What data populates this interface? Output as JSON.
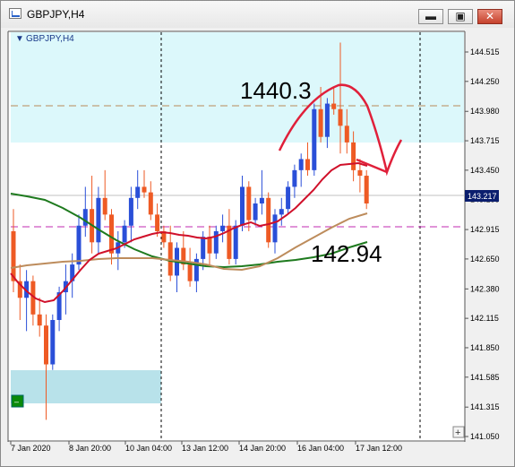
{
  "window": {
    "title": "GBPJPY,H4"
  },
  "chart": {
    "symbol_label": "GBPJPY,H4"
  },
  "chart_data": {
    "type": "candlestick",
    "symbol": "GBPJPY,H4",
    "y_ticks": [
      "144.515",
      "144.250",
      "143.980",
      "143.715",
      "143.450",
      "143.185",
      "142.915",
      "142.650",
      "142.380",
      "142.115",
      "141.850",
      "141.585",
      "141.315",
      "141.050"
    ],
    "x_ticks": [
      "7 Jan 2020",
      "8 Jan 20:00",
      "10 Jan 04:00",
      "13 Jan 12:00",
      "14 Jan 20:00",
      "16 Jan 04:00",
      "17 Jan 12:00"
    ],
    "current_price": "143.217",
    "ylim": [
      141.05,
      144.6
    ],
    "annotations": [
      "1440.3",
      "142.94"
    ],
    "ohlc": [
      [
        142.9,
        143.1,
        142.35,
        142.45
      ],
      [
        142.45,
        142.6,
        142.1,
        142.3
      ],
      [
        142.3,
        142.55,
        142.0,
        142.45
      ],
      [
        142.45,
        142.5,
        142.05,
        142.15
      ],
      [
        142.15,
        142.3,
        141.95,
        142.05
      ],
      [
        142.05,
        142.15,
        141.2,
        141.7
      ],
      [
        141.7,
        142.15,
        141.65,
        142.1
      ],
      [
        142.1,
        142.4,
        142.0,
        142.35
      ],
      [
        142.35,
        142.6,
        142.15,
        142.45
      ],
      [
        142.45,
        142.7,
        142.3,
        142.6
      ],
      [
        142.6,
        143.05,
        142.55,
        142.95
      ],
      [
        142.95,
        143.3,
        142.85,
        143.1
      ],
      [
        143.1,
        143.4,
        142.7,
        142.8
      ],
      [
        142.8,
        143.3,
        142.7,
        143.2
      ],
      [
        143.2,
        143.45,
        143.0,
        143.05
      ],
      [
        143.05,
        143.1,
        142.6,
        142.7
      ],
      [
        142.7,
        142.9,
        142.55,
        142.8
      ],
      [
        142.8,
        143.0,
        142.75,
        142.95
      ],
      [
        142.95,
        143.3,
        142.8,
        143.2
      ],
      [
        143.2,
        143.45,
        143.1,
        143.3
      ],
      [
        143.3,
        143.45,
        143.2,
        143.25
      ],
      [
        143.25,
        143.35,
        143.0,
        143.05
      ],
      [
        143.05,
        143.15,
        142.85,
        142.9
      ],
      [
        142.9,
        142.95,
        142.75,
        142.8
      ],
      [
        142.8,
        142.95,
        142.45,
        142.5
      ],
      [
        142.5,
        142.8,
        142.35,
        142.75
      ],
      [
        142.75,
        142.9,
        142.55,
        142.6
      ],
      [
        142.6,
        142.75,
        142.4,
        142.45
      ],
      [
        142.45,
        142.7,
        142.35,
        142.65
      ],
      [
        142.65,
        142.9,
        142.55,
        142.85
      ],
      [
        142.85,
        142.95,
        142.6,
        142.7
      ],
      [
        142.7,
        142.95,
        142.65,
        142.9
      ],
      [
        142.9,
        143.05,
        142.8,
        142.95
      ],
      [
        142.95,
        143.1,
        142.6,
        142.65
      ],
      [
        142.65,
        143.0,
        142.6,
        142.95
      ],
      [
        142.95,
        143.4,
        142.9,
        143.3
      ],
      [
        143.3,
        143.35,
        142.9,
        143.0
      ],
      [
        143.0,
        143.2,
        142.95,
        143.15
      ],
      [
        143.15,
        143.45,
        143.05,
        143.2
      ],
      [
        143.2,
        143.25,
        142.75,
        142.8
      ],
      [
        142.8,
        143.1,
        142.7,
        143.05
      ],
      [
        143.05,
        143.2,
        142.95,
        143.1
      ],
      [
        143.1,
        143.35,
        143.05,
        143.3
      ],
      [
        143.3,
        143.5,
        143.2,
        143.45
      ],
      [
        143.45,
        143.6,
        143.3,
        143.55
      ],
      [
        143.55,
        143.7,
        143.4,
        143.45
      ],
      [
        143.45,
        144.05,
        143.4,
        144.0
      ],
      [
        144.0,
        144.2,
        143.7,
        143.75
      ],
      [
        143.75,
        144.1,
        143.65,
        144.05
      ],
      [
        144.05,
        144.2,
        143.95,
        144.0
      ],
      [
        144.0,
        144.6,
        143.6,
        143.85
      ],
      [
        143.85,
        144.0,
        143.6,
        143.7
      ],
      [
        143.7,
        143.8,
        143.35,
        143.45
      ],
      [
        143.45,
        143.55,
        143.25,
        143.4
      ],
      [
        143.4,
        143.45,
        143.1,
        143.15
      ]
    ]
  }
}
